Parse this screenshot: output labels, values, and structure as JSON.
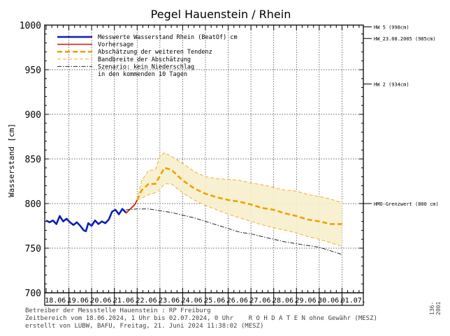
{
  "chart_data": {
    "type": "line",
    "title": "Pegel Hauenstein / Rhein",
    "xlabel": "",
    "ylabel": "Wasserstand [cm]",
    "ylim": [
      700,
      1000
    ],
    "yticks": [
      700,
      750,
      800,
      850,
      900,
      950,
      1000
    ],
    "x_range": [
      "2024-06-18T00:00",
      "2024-07-02T00:00"
    ],
    "date_ticks": [
      "18.06.",
      "19.06.",
      "20.06.",
      "21.06.",
      "22.06.",
      "23.06.",
      "24.06.",
      "25.06.",
      "26.06.",
      "27.06.",
      "28.06.",
      "29.06.",
      "30.06.",
      "01.07."
    ],
    "grid": true,
    "legend": [
      {
        "label": "Messwerte Wasserstand Rhein   (BeatOf)   cm",
        "color": "#0a1fb4",
        "style": "solid"
      },
      {
        "label": "Vorhersage",
        "color": "#d22020",
        "style": "solid"
      },
      {
        "label": "Abschätzung der weiteren Tendenz",
        "color": "#f0a000",
        "style": "dashed"
      },
      {
        "label": "Bandbreite der Abschätzung",
        "color": "#f0b030",
        "style": "dashed-thin"
      },
      {
        "label": "Szenario: kein Niederschlag",
        "color": "#222222",
        "style": "dashdot"
      },
      {
        "label": "in den kommenden 10 Tagen",
        "color": "",
        "style": "none"
      }
    ],
    "thresholds": [
      {
        "label": "HW 5 (998cm)",
        "value": 998
      },
      {
        "label": "HW_23.08.2005 (985cm)",
        "value": 985
      },
      {
        "label": "HW 2 (934cm)",
        "value": 934
      },
      {
        "label": "HMO-Grenzwert (800 cm)",
        "value": 800
      }
    ],
    "series": [
      {
        "name": "Messwerte Wasserstand Rhein",
        "color": "#0a1fb4",
        "x": [
          0.0,
          0.15,
          0.3,
          0.45,
          0.6,
          0.75,
          0.9,
          1.05,
          1.2,
          1.35,
          1.5,
          1.65,
          1.75,
          1.85,
          2.0,
          2.15,
          2.3,
          2.45,
          2.6,
          2.75,
          2.9,
          3.05,
          3.2,
          3.35,
          3.5
        ],
        "y": [
          781,
          779,
          781,
          777,
          786,
          780,
          783,
          779,
          776,
          779,
          775,
          770,
          769,
          778,
          775,
          781,
          777,
          780,
          778,
          782,
          791,
          793,
          788,
          794,
          790
        ]
      },
      {
        "name": "Vorhersage",
        "color": "#d22020",
        "x": [
          3.5,
          3.7,
          3.9,
          4.0
        ],
        "y": [
          789,
          794,
          799,
          804
        ]
      },
      {
        "name": "Abschätzung der weiteren Tendenz",
        "color": "#f0a000",
        "x": [
          4.0,
          4.2,
          4.5,
          4.8,
          5.0,
          5.2,
          5.5,
          6.0,
          6.5,
          7.0,
          7.5,
          8.0,
          8.5,
          9.0,
          9.5,
          10.0,
          10.5,
          11.0,
          11.5,
          12.0,
          12.5,
          13.0
        ],
        "y": [
          804,
          815,
          822,
          822,
          831,
          840,
          838,
          826,
          817,
          811,
          807,
          804,
          802,
          799,
          795,
          793,
          789,
          786,
          782,
          780,
          777,
          777
        ]
      },
      {
        "name": "Bandbreite (oben)",
        "color": "#f0b030",
        "x": [
          4.0,
          4.2,
          4.5,
          4.8,
          5.0,
          5.2,
          5.5,
          6.0,
          6.5,
          7.0,
          7.5,
          8.0,
          8.5,
          9.0,
          9.5,
          10.0,
          10.5,
          11.0,
          11.5,
          12.0,
          12.5,
          13.0
        ],
        "y": [
          804,
          826,
          837,
          838,
          853,
          857,
          853,
          845,
          836,
          830,
          828,
          827,
          826,
          823,
          821,
          818,
          815,
          814,
          810,
          808,
          805,
          801
        ]
      },
      {
        "name": "Bandbreite (unten)",
        "color": "#f0b030",
        "x": [
          4.0,
          4.2,
          4.5,
          4.8,
          5.0,
          5.2,
          5.5,
          6.0,
          6.5,
          7.0,
          7.5,
          8.0,
          8.5,
          9.0,
          9.5,
          10.0,
          10.5,
          11.0,
          11.5,
          12.0,
          12.5,
          13.0
        ],
        "y": [
          804,
          806,
          810,
          812,
          816,
          822,
          822,
          812,
          804,
          798,
          793,
          788,
          784,
          780,
          776,
          773,
          770,
          767,
          763,
          760,
          756,
          752
        ]
      },
      {
        "name": "Szenario: kein Niederschlag",
        "color": "#222222",
        "x": [
          3.5,
          4.0,
          4.5,
          5.0,
          5.5,
          6.0,
          6.5,
          7.0,
          7.5,
          8.0,
          8.5,
          9.0,
          9.5,
          10.0,
          10.5,
          11.0,
          11.5,
          12.0,
          12.5,
          13.0
        ],
        "y": [
          793,
          794,
          794,
          792,
          790,
          787,
          784,
          780,
          776,
          772,
          768,
          766,
          763,
          760,
          757,
          755,
          753,
          751,
          747,
          743
        ]
      }
    ]
  },
  "footer": {
    "line1": "Betreiber der Messstelle Hauenstein : RP Freiburg",
    "line2": "Zeitbereich vom 18.06.2024, 1 Uhr bis 02.07.2024, 0 Uhr    R O H D A T E N ohne Gewähr (MESZ)",
    "line3": "erstellt von LUBW, BAFU, Freitag, 21. Juni 2024 11:38:02 (MESZ)",
    "side_id": "136-2001"
  }
}
